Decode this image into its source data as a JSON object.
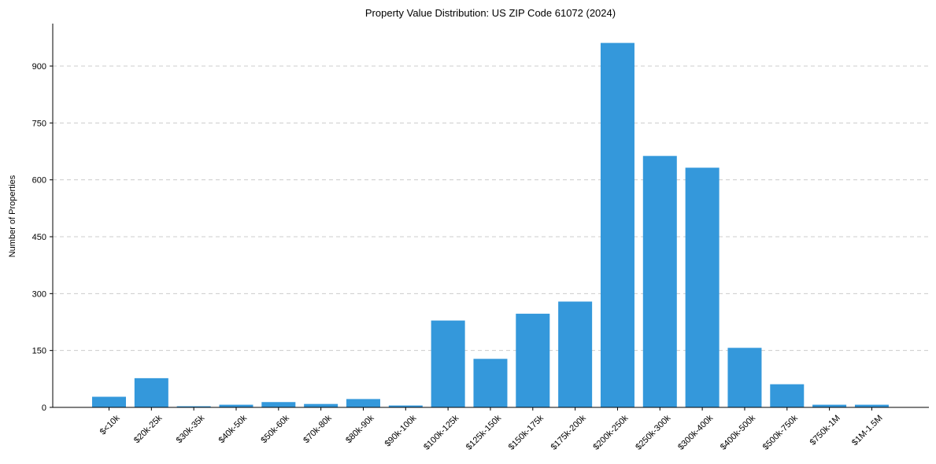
{
  "chart_data": {
    "type": "bar",
    "title": "Property Value Distribution: US ZIP Code 61072 (2024)",
    "xlabel": "",
    "ylabel": "Number of Properties",
    "categories": [
      "$<10k",
      "$20k-25k",
      "$30k-35k",
      "$40k-50k",
      "$50k-60k",
      "$70k-80k",
      "$80k-90k",
      "$90k-100k",
      "$100k-125k",
      "$125k-150k",
      "$150k-175k",
      "$175k-200k",
      "$200k-250k",
      "$250k-300k",
      "$300k-400k",
      "$400k-500k",
      "$500k-750k",
      "$750k-1M",
      "$1M-1.5M"
    ],
    "values": [
      28,
      77,
      3,
      7,
      14,
      9,
      22,
      5,
      229,
      128,
      247,
      279,
      961,
      663,
      632,
      157,
      61,
      7,
      7
    ],
    "yticks": [
      0,
      150,
      300,
      450,
      600,
      750,
      900
    ],
    "ylim": [
      0,
      1000
    ],
    "grid": "y-dashed",
    "color": "#3498db"
  }
}
